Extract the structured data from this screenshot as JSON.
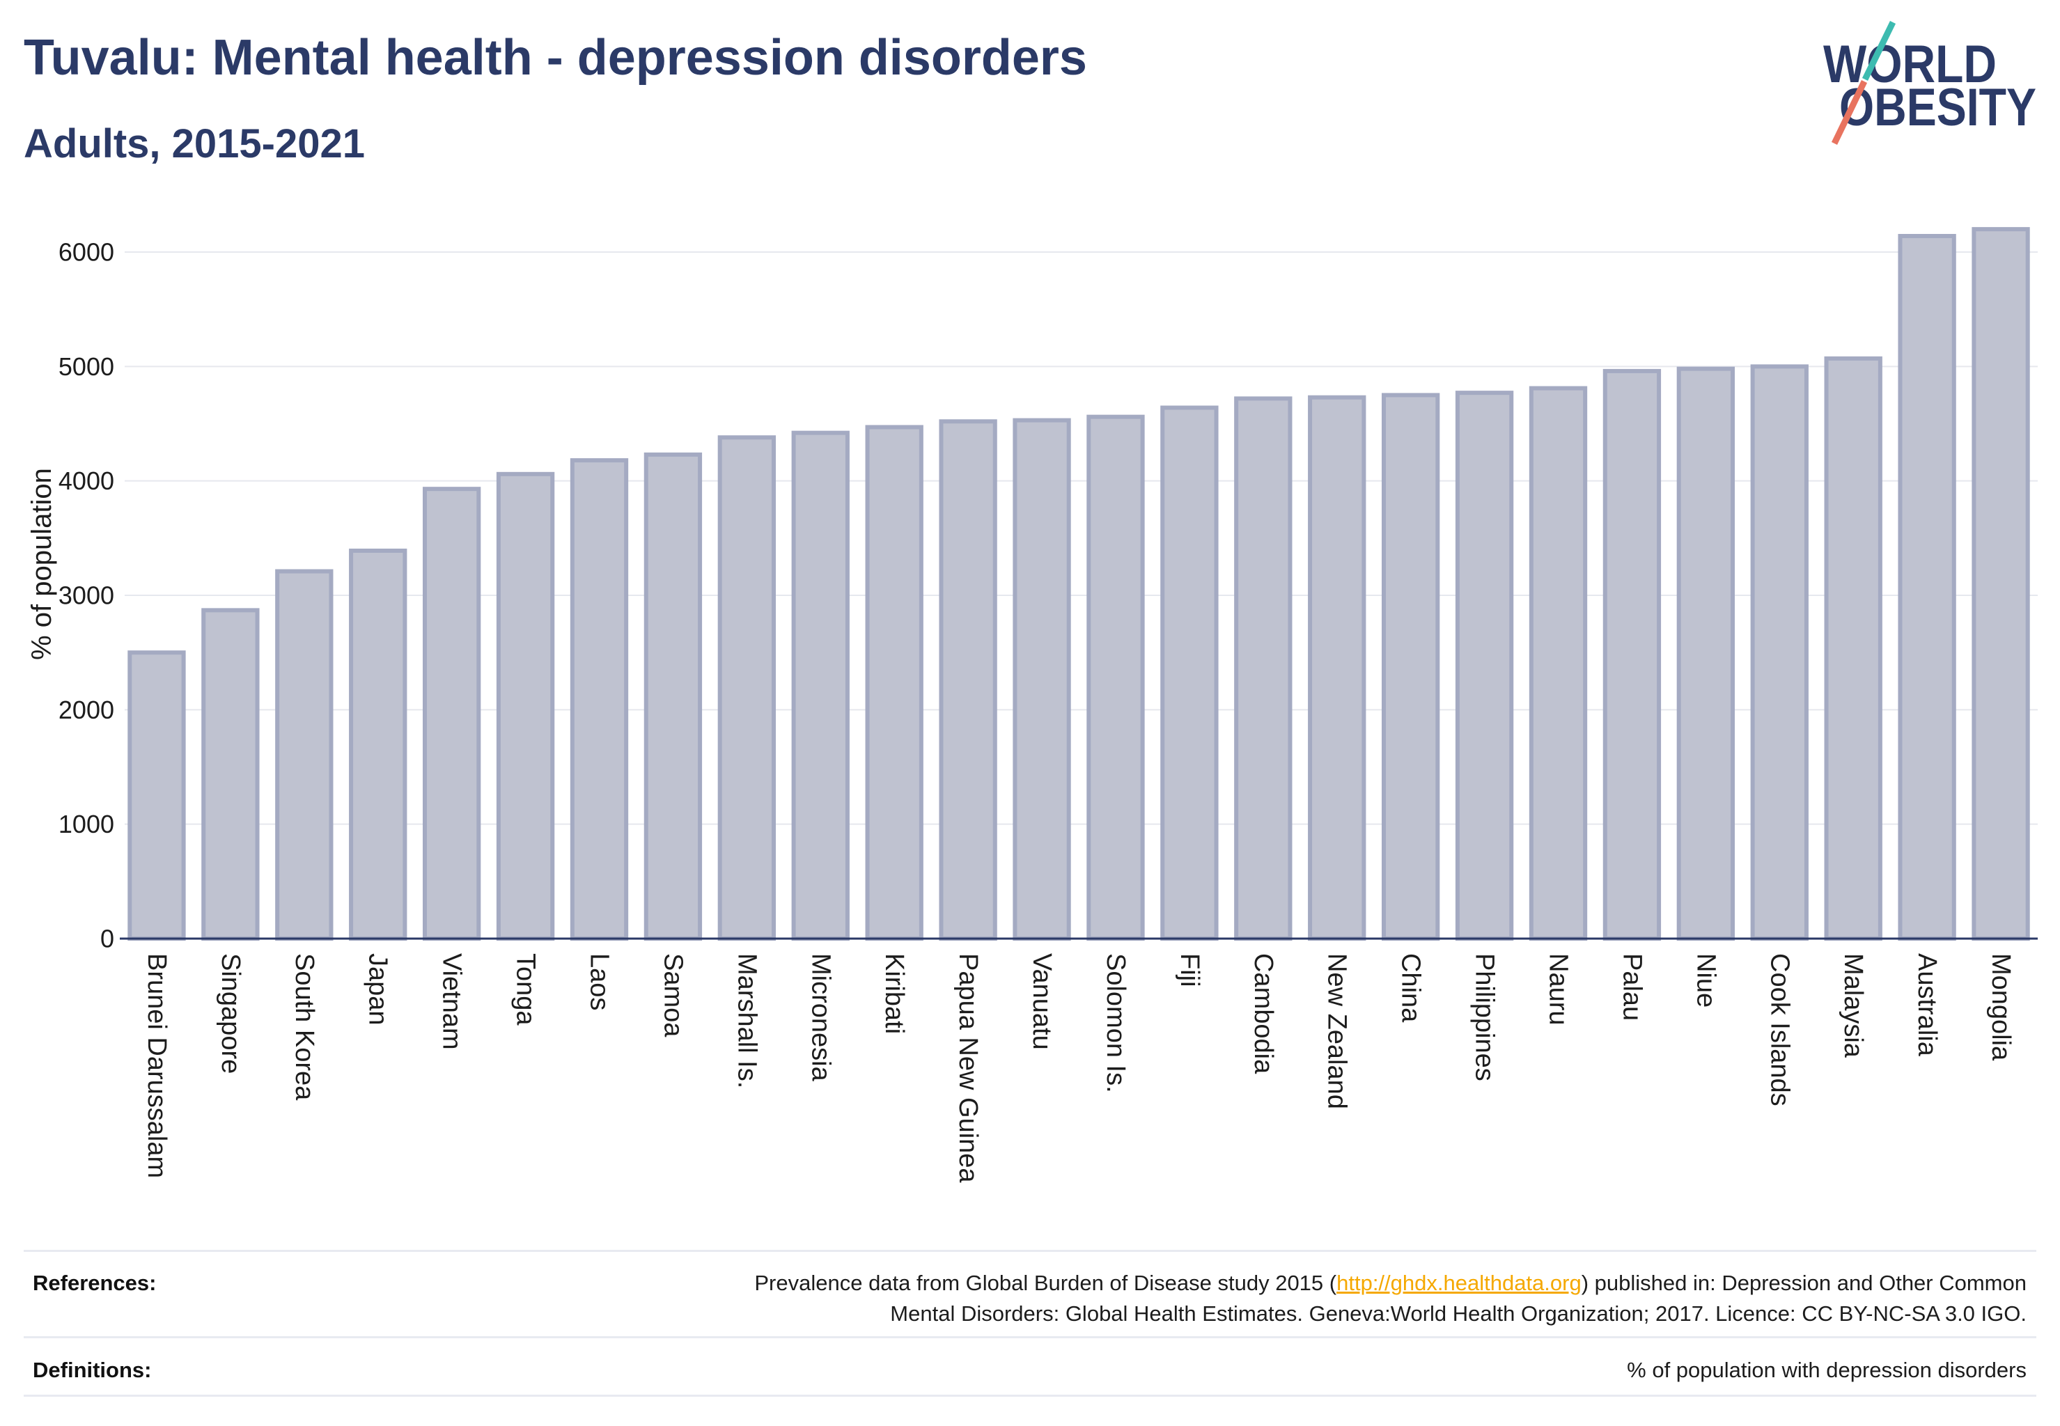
{
  "chart_data": {
    "type": "bar",
    "title": "Tuvalu: Mental health - depression disorders",
    "subtitle": "Adults, 2015-2021",
    "xlabel": "",
    "ylabel": "% of population",
    "ylim": [
      0,
      6300
    ],
    "yticks": [
      0,
      1000,
      2000,
      3000,
      4000,
      5000,
      6000
    ],
    "grid": true,
    "categories": [
      "Brunei Darussalam",
      "Singapore",
      "South Korea",
      "Japan",
      "Vietnam",
      "Tonga",
      "Laos",
      "Samoa",
      "Marshall Is.",
      "Micronesia",
      "Kiribati",
      "Papua New Guinea",
      "Vanuatu",
      "Solomon Is.",
      "Fiji",
      "Cambodia",
      "New Zealand",
      "China",
      "Philippines",
      "Nauru",
      "Palau",
      "Niue",
      "Cook Islands",
      "Malaysia",
      "Australia",
      "Mongolia"
    ],
    "values": [
      2500,
      2870,
      3210,
      3390,
      3930,
      4060,
      4180,
      4230,
      4380,
      4420,
      4470,
      4520,
      4530,
      4560,
      4640,
      4720,
      4730,
      4750,
      4770,
      4810,
      4960,
      4980,
      5000,
      5070,
      6140,
      6200
    ]
  },
  "logo": {
    "line1": "WORLD",
    "line2": "OBESITY"
  },
  "footer": {
    "references_label": "References:",
    "references_line1_before_link": "Prevalence data from Global Burden of Disease study 2015 (",
    "references_link": "http://ghdx.healthdata.org",
    "references_line1_after_link": ") published in: Depression and Other Common",
    "references_line2": "Mental Disorders: Global Health Estimates. Geneva:World Health Organization; 2017. Licence: CC BY-NC-SA 3.0 IGO.",
    "definitions_label": "Definitions:",
    "definitions_text": "% of population with depression disorders"
  },
  "colors": {
    "title": "#2b3a67",
    "bar_fill": "#bfc2d0",
    "bar_border": "#a4aac2",
    "axis": "#2b3a67",
    "gridline": "#e6e8ee",
    "link": "#f5a800",
    "logo_text": "#2b3a67",
    "logo_slash_top": "#3dbbb0",
    "logo_slash_bottom": "#e8735f"
  }
}
